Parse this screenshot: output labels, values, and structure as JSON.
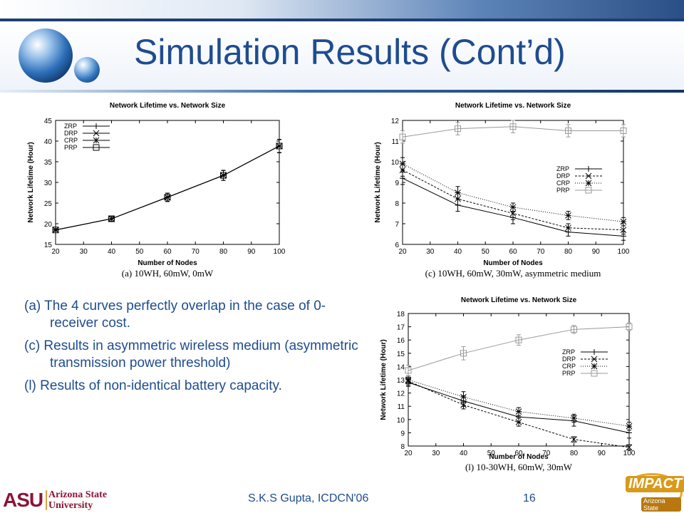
{
  "slide": {
    "title": "Simulation Results (Cont’d)",
    "footer_center": "S.K.S Gupta, ICDCN'06",
    "page_number": "16",
    "asu_mark": "ASU",
    "asu_line1": "Arizona State",
    "asu_line2": "University",
    "impact_word": "IMPACT",
    "impact_sub": "Arizona State",
    "notes": [
      "(a) The 4 curves perfectly overlap in the case of 0-receiver cost.",
      "(c) Results in asymmetric wireless medium (asymmetric transmission power threshold)",
      "(l) Results of non-identical battery capacity."
    ]
  },
  "chart_data": [
    {
      "type": "line",
      "title": "Network Lifetime vs. Network Size",
      "caption": "(a)  10WH,  60mW,  0mW",
      "xlabel": "Number of Nodes",
      "ylabel": "Network Lifetime (Hour)",
      "x": [
        20,
        40,
        60,
        80,
        100
      ],
      "xticks": [
        20,
        30,
        40,
        50,
        60,
        70,
        80,
        90,
        100
      ],
      "yticks": [
        15,
        20,
        25,
        30,
        35,
        40,
        45
      ],
      "xlim": [
        20,
        100
      ],
      "ylim": [
        15,
        45
      ],
      "legend_position": "top-left",
      "series": [
        {
          "name": "ZRP",
          "marker": "+",
          "dash": "",
          "values": [
            18.5,
            21.2,
            26.4,
            31.7,
            38.8
          ],
          "err": [
            0.3,
            0.6,
            1.0,
            1.2,
            1.6
          ]
        },
        {
          "name": "DRP",
          "marker": "x",
          "dash": "",
          "values": [
            18.5,
            21.2,
            26.4,
            31.7,
            38.8
          ],
          "err": [
            0.3,
            0.6,
            1.0,
            1.2,
            1.6
          ]
        },
        {
          "name": "CRP",
          "marker": "*",
          "dash": "",
          "values": [
            18.5,
            21.2,
            26.4,
            31.7,
            38.8
          ],
          "err": [
            0.3,
            0.6,
            1.0,
            1.2,
            1.6
          ]
        },
        {
          "name": "PRP",
          "marker": "square",
          "dash": "",
          "values": [
            18.5,
            21.2,
            26.4,
            31.7,
            38.8
          ],
          "err": [
            0.3,
            0.6,
            1.0,
            1.2,
            1.6
          ]
        }
      ]
    },
    {
      "type": "line",
      "title": "Network Lifetime vs. Network Size",
      "caption": "(c)  10WH,  60mW,  30mW,  asymmetric  medium",
      "xlabel": "Number of Nodes",
      "ylabel": "Network Lifetime (Hour)",
      "x": [
        20,
        40,
        60,
        80,
        100
      ],
      "xticks": [
        20,
        30,
        40,
        50,
        60,
        70,
        80,
        90,
        100
      ],
      "yticks": [
        6,
        7,
        8,
        9,
        10,
        11,
        12
      ],
      "xlim": [
        20,
        100
      ],
      "ylim": [
        6,
        12
      ],
      "legend_position": "middle-right",
      "series": [
        {
          "name": "ZRP",
          "marker": "+",
          "dash": "",
          "values": [
            9.2,
            7.9,
            7.3,
            6.6,
            6.4
          ],
          "err": [
            0.3,
            0.3,
            0.3,
            0.2,
            0.2
          ]
        },
        {
          "name": "DRP",
          "marker": "x",
          "dash": "3,2",
          "values": [
            9.6,
            8.2,
            7.5,
            6.8,
            6.7
          ],
          "err": [
            0.3,
            0.3,
            0.3,
            0.2,
            0.2
          ]
        },
        {
          "name": "CRP",
          "marker": "*",
          "dash": "1,2",
          "values": [
            9.9,
            8.5,
            7.8,
            7.4,
            7.1
          ],
          "err": [
            0.3,
            0.3,
            0.2,
            0.2,
            0.2
          ]
        },
        {
          "name": "PRP",
          "marker": "square",
          "dash": "",
          "color": "#999999",
          "values": [
            11.2,
            11.6,
            11.7,
            11.5,
            11.5
          ],
          "err": [
            0.3,
            0.3,
            0.3,
            0.3,
            0.3
          ]
        }
      ]
    },
    {
      "type": "line",
      "title": "Network Lifetime vs. Network Size",
      "caption": "(l)  10-30WH,  60mW,  30mW",
      "xlabel": "Number of Nodes",
      "ylabel": "Network Lifetime (Hour)",
      "x": [
        20,
        40,
        60,
        80,
        100
      ],
      "xticks": [
        20,
        30,
        40,
        50,
        60,
        70,
        80,
        90,
        100
      ],
      "yticks": [
        8,
        9,
        10,
        11,
        12,
        13,
        14,
        15,
        16,
        17,
        18
      ],
      "xlim": [
        20,
        100
      ],
      "ylim": [
        8,
        18
      ],
      "legend_position": "middle-right",
      "series": [
        {
          "name": "ZRP",
          "marker": "+",
          "dash": "",
          "values": [
            12.8,
            11.4,
            10.2,
            9.9,
            9.0
          ],
          "err": [
            0.3,
            0.4,
            0.4,
            0.4,
            0.4
          ]
        },
        {
          "name": "DRP",
          "marker": "x",
          "dash": "3,2",
          "values": [
            12.9,
            11.1,
            9.8,
            8.5,
            7.9
          ],
          "err": [
            0.3,
            0.3,
            0.3,
            0.2,
            0.2
          ]
        },
        {
          "name": "CRP",
          "marker": "*",
          "dash": "1,2",
          "values": [
            13.0,
            11.7,
            10.6,
            10.1,
            9.5
          ],
          "err": [
            0.3,
            0.4,
            0.3,
            0.3,
            0.3
          ]
        },
        {
          "name": "PRP",
          "marker": "square",
          "dash": "",
          "color": "#999999",
          "values": [
            13.7,
            15.0,
            16.0,
            16.8,
            17.0
          ],
          "err": [
            0.4,
            0.5,
            0.4,
            0.3,
            0.3
          ]
        }
      ]
    }
  ]
}
